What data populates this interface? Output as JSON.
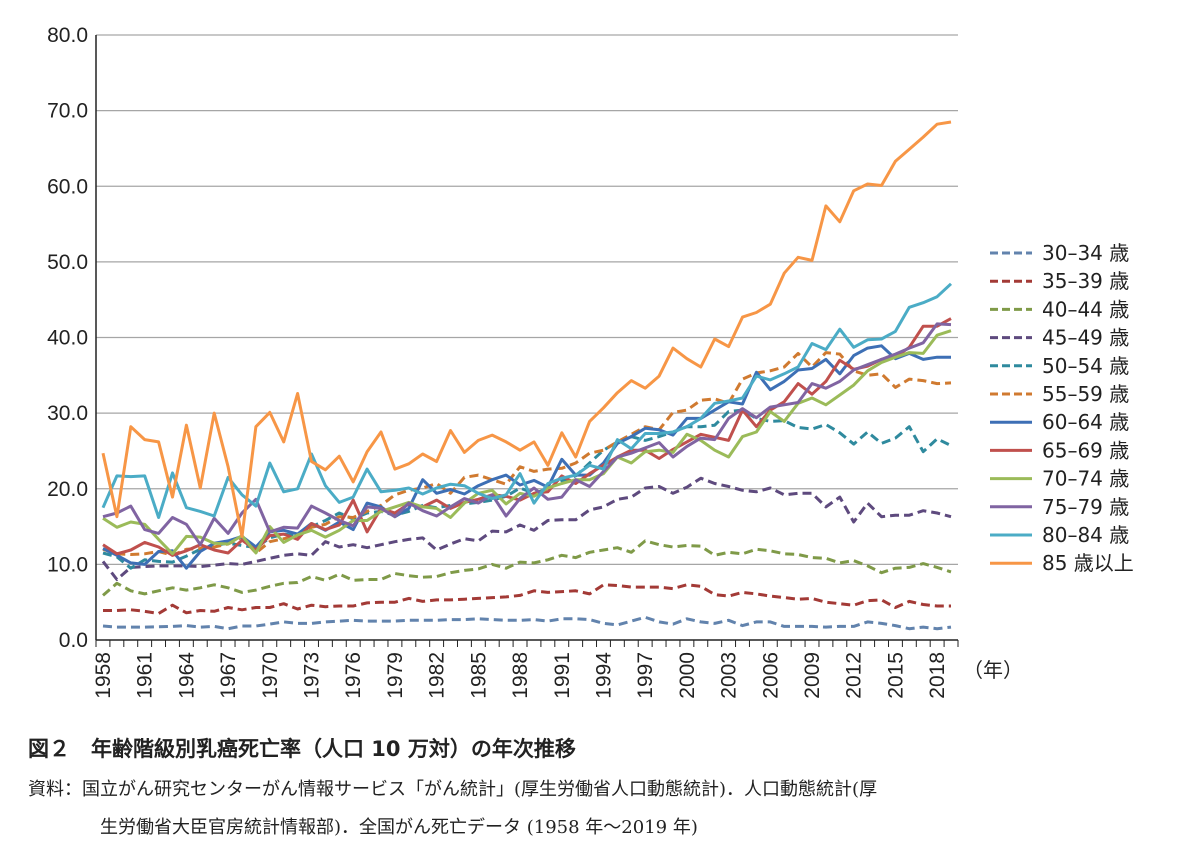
{
  "chart_data": {
    "type": "line",
    "title": "",
    "xlabel": "（年）",
    "ylabel": "",
    "ylim": [
      0,
      80
    ],
    "yticks": [
      "0.0",
      "10.0",
      "20.0",
      "30.0",
      "40.0",
      "50.0",
      "60.0",
      "70.0",
      "80.0"
    ],
    "xtick_labels": [
      "1958",
      "1961",
      "1964",
      "1967",
      "1970",
      "1973",
      "1976",
      "1979",
      "1982",
      "1985",
      "1988",
      "1991",
      "1994",
      "1997",
      "2000",
      "2003",
      "2006",
      "2009",
      "2012",
      "2015",
      "2018"
    ],
    "x_start": 1958,
    "x_end": 2019,
    "grid": "horizontal",
    "legend_placement": "right",
    "series": [
      {
        "name": "30–34 歳",
        "style": "dashed",
        "color": "#6283ad",
        "values": [
          1.85,
          1.7,
          1.7,
          1.7,
          1.75,
          1.8,
          1.9,
          1.7,
          1.8,
          1.5,
          1.85,
          1.85,
          2.1,
          2.4,
          2.2,
          2.2,
          2.4,
          2.5,
          2.6,
          2.5,
          2.5,
          2.5,
          2.6,
          2.6,
          2.6,
          2.7,
          2.7,
          2.8,
          2.7,
          2.6,
          2.6,
          2.7,
          2.5,
          2.8,
          2.8,
          2.7,
          2.2,
          2.0,
          2.5,
          3.0,
          2.4,
          2.1,
          2.8,
          2.4,
          2.2,
          2.6,
          1.9,
          2.4,
          2.4,
          1.8,
          1.8,
          1.8,
          1.7,
          1.8,
          1.8,
          2.4,
          2.2,
          1.9,
          1.5,
          1.7,
          1.5,
          1.7
        ]
      },
      {
        "name": "35–39 歳",
        "style": "dashed",
        "color": "#a33a36",
        "values": [
          3.9,
          3.9,
          4.0,
          3.8,
          3.5,
          4.6,
          3.6,
          3.9,
          3.8,
          4.3,
          4.0,
          4.3,
          4.3,
          4.8,
          4.1,
          4.6,
          4.4,
          4.5,
          4.5,
          4.9,
          5.0,
          5.0,
          5.5,
          5.1,
          5.3,
          5.3,
          5.4,
          5.5,
          5.6,
          5.7,
          5.9,
          6.5,
          6.3,
          6.4,
          6.5,
          6.1,
          7.3,
          7.2,
          7.0,
          7.0,
          7.0,
          6.8,
          7.3,
          7.1,
          6.0,
          5.8,
          6.3,
          6.1,
          5.8,
          5.6,
          5.4,
          5.5,
          5.0,
          4.8,
          4.6,
          5.2,
          5.3,
          4.3,
          5.1,
          4.7,
          4.5,
          4.5
        ]
      },
      {
        "name": "40–44 歳",
        "style": "dashed",
        "color": "#7f9a48",
        "values": [
          5.9,
          7.5,
          6.5,
          6.1,
          6.5,
          6.9,
          6.6,
          6.9,
          7.3,
          6.9,
          6.3,
          6.6,
          7.1,
          7.5,
          7.6,
          8.4,
          7.9,
          8.7,
          7.9,
          8.0,
          8.0,
          8.8,
          8.5,
          8.3,
          8.4,
          8.9,
          9.2,
          9.4,
          10.0,
          9.5,
          10.3,
          10.2,
          10.6,
          11.2,
          10.9,
          11.6,
          11.9,
          12.2,
          11.6,
          13.1,
          12.6,
          12.3,
          12.5,
          12.4,
          11.2,
          11.6,
          11.4,
          12.0,
          11.8,
          11.4,
          11.3,
          10.9,
          10.8,
          10.2,
          10.5,
          9.8,
          8.9,
          9.5,
          9.6,
          10.1,
          9.6,
          9.0
        ]
      },
      {
        "name": "45–49 歳",
        "style": "dashed",
        "color": "#5e4a7e",
        "values": [
          10.4,
          8.0,
          9.6,
          9.7,
          9.8,
          9.8,
          9.8,
          9.7,
          9.9,
          10.1,
          10.0,
          10.4,
          10.8,
          11.2,
          11.4,
          11.2,
          13.0,
          12.3,
          12.6,
          12.2,
          12.6,
          13.0,
          13.3,
          13.5,
          11.9,
          12.7,
          13.4,
          13.1,
          14.4,
          14.3,
          15.2,
          14.5,
          15.8,
          15.9,
          15.9,
          17.2,
          17.6,
          18.6,
          18.9,
          20.1,
          20.3,
          19.4,
          20.2,
          21.4,
          20.7,
          20.3,
          19.8,
          19.6,
          20.1,
          19.2,
          19.4,
          19.4,
          17.6,
          18.9,
          15.6,
          18.1,
          16.3,
          16.5,
          16.5,
          17.1,
          16.8,
          16.3
        ]
      },
      {
        "name": "50–54 歳",
        "style": "dashed",
        "color": "#2f8a9e",
        "values": [
          11.5,
          11.0,
          9.5,
          10.6,
          10.4,
          10.3,
          11.1,
          12.0,
          12.5,
          12.8,
          12.5,
          12.2,
          13.5,
          14.0,
          13.8,
          15.0,
          15.8,
          16.8,
          16.0,
          16.8,
          17.0,
          16.5,
          17.0,
          17.8,
          17.5,
          17.8,
          18.0,
          18.2,
          18.5,
          19.0,
          20.1,
          19.4,
          20.0,
          21.0,
          21.7,
          23.4,
          25.1,
          26.2,
          26.9,
          26.4,
          26.9,
          27.5,
          28.2,
          28.2,
          28.4,
          30.2,
          30.4,
          29.3,
          28.9,
          29.0,
          28.1,
          27.9,
          28.5,
          27.4,
          25.9,
          27.5,
          26.0,
          26.7,
          28.2,
          24.9,
          26.6,
          25.7
        ]
      },
      {
        "name": "55–59 歳",
        "style": "dashed",
        "color": "#d07a30",
        "values": [
          12.0,
          11.4,
          11.3,
          11.4,
          11.7,
          11.2,
          12.0,
          12.1,
          12.3,
          12.7,
          13.6,
          11.5,
          13.0,
          13.4,
          13.7,
          14.9,
          15.3,
          16.3,
          16.2,
          17.0,
          17.8,
          19.2,
          19.8,
          20.1,
          20.7,
          19.4,
          21.5,
          21.8,
          21.2,
          20.6,
          22.9,
          22.3,
          22.6,
          22.7,
          23.4,
          24.7,
          25.1,
          26.2,
          27.2,
          28.2,
          27.8,
          30.1,
          30.4,
          31.7,
          31.9,
          31.3,
          34.5,
          35.3,
          35.6,
          36.1,
          37.9,
          36.1,
          38.0,
          37.8,
          35.6,
          35.0,
          35.2,
          33.4,
          34.5,
          34.3,
          33.9,
          34.0
        ]
      },
      {
        "name": "60–64 歳",
        "style": "solid",
        "color": "#3d6fb5",
        "values": [
          12.1,
          11.2,
          10.2,
          10.0,
          11.7,
          11.8,
          9.5,
          11.7,
          12.8,
          13.1,
          13.7,
          12.3,
          14.3,
          14.5,
          14.0,
          15.4,
          14.5,
          15.6,
          14.6,
          18.1,
          17.6,
          16.3,
          17.4,
          21.2,
          19.4,
          19.9,
          19.3,
          20.4,
          21.2,
          21.8,
          20.5,
          21.1,
          20.2,
          23.9,
          21.8,
          21.8,
          23.4,
          26.0,
          26.9,
          28.0,
          27.8,
          27.1,
          29.3,
          29.3,
          30.4,
          31.5,
          31.2,
          35.4,
          33.1,
          34.2,
          35.7,
          35.9,
          37.1,
          35.2,
          37.6,
          38.6,
          38.9,
          37.2,
          37.9,
          37.1,
          37.4,
          37.4
        ]
      },
      {
        "name": "65–69 歳",
        "style": "solid",
        "color": "#c0504d",
        "values": [
          12.6,
          11.4,
          11.9,
          12.9,
          12.3,
          11.2,
          11.8,
          12.6,
          11.9,
          11.5,
          13.2,
          11.9,
          13.8,
          14.0,
          13.3,
          15.4,
          14.6,
          15.2,
          18.5,
          14.3,
          17.4,
          16.8,
          18.0,
          17.6,
          18.5,
          17.4,
          18.2,
          18.6,
          19.2,
          19.0,
          18.5,
          19.4,
          19.6,
          21.7,
          20.7,
          22.0,
          23.1,
          24.2,
          25.1,
          25.1,
          24.0,
          25.2,
          26.2,
          27.2,
          26.8,
          26.4,
          30.4,
          28.2,
          30.4,
          31.5,
          33.9,
          32.5,
          34.2,
          37.0,
          35.8,
          36.2,
          37.1,
          37.4,
          38.7,
          41.5,
          41.5,
          42.5
        ]
      },
      {
        "name": "70–74 歳",
        "style": "solid",
        "color": "#9bbb59",
        "values": [
          16.1,
          14.9,
          15.6,
          15.3,
          13.3,
          11.4,
          13.7,
          13.6,
          12.8,
          12.7,
          13.8,
          11.5,
          15.0,
          12.9,
          13.9,
          14.5,
          13.6,
          14.5,
          15.8,
          15.8,
          17.0,
          17.6,
          18.2,
          17.6,
          17.4,
          16.2,
          18.1,
          19.4,
          19.8,
          18.0,
          19.4,
          19.0,
          20.1,
          20.7,
          21.2,
          21.2,
          22.0,
          24.2,
          23.4,
          24.9,
          25.1,
          24.8,
          27.2,
          26.4,
          25.1,
          24.2,
          26.9,
          27.5,
          30.2,
          28.9,
          31.3,
          32.0,
          31.1,
          32.4,
          33.7,
          35.6,
          36.7,
          37.4,
          38.0,
          37.9,
          40.3,
          40.9
        ]
      },
      {
        "name": "75–79 歳",
        "style": "solid",
        "color": "#8064a2",
        "values": [
          16.3,
          16.8,
          17.7,
          14.6,
          14.1,
          16.2,
          15.3,
          12.6,
          16.1,
          14.1,
          16.8,
          18.6,
          14.3,
          14.9,
          14.8,
          17.7,
          16.8,
          15.8,
          15.1,
          17.6,
          17.4,
          16.3,
          18.1,
          17.1,
          16.4,
          17.6,
          18.7,
          18.1,
          19.2,
          16.4,
          18.7,
          20.1,
          18.6,
          18.9,
          21.2,
          20.3,
          22.3,
          24.2,
          24.7,
          25.4,
          26.1,
          24.2,
          25.6,
          26.7,
          26.5,
          29.3,
          30.6,
          29.4,
          30.8,
          31.1,
          31.4,
          33.9,
          33.3,
          34.2,
          35.7,
          36.4,
          37.1,
          37.8,
          38.6,
          39.3,
          41.8,
          41.7
        ]
      },
      {
        "name": "80–84 歳",
        "style": "solid",
        "color": "#4bacc6",
        "values": [
          17.5,
          21.7,
          21.6,
          21.7,
          16.2,
          22.1,
          17.5,
          17.0,
          16.4,
          21.5,
          19.2,
          17.7,
          23.4,
          19.6,
          20.0,
          24.6,
          20.4,
          18.2,
          18.9,
          22.6,
          19.6,
          19.8,
          20.1,
          19.3,
          20.1,
          20.6,
          20.4,
          19.4,
          18.7,
          19.2,
          22.0,
          18.1,
          20.7,
          21.4,
          21.8,
          23.1,
          22.6,
          26.5,
          25.3,
          27.3,
          27.3,
          27.5,
          28.2,
          29.3,
          31.3,
          31.6,
          32.0,
          34.9,
          34.4,
          35.2,
          36.1,
          39.2,
          38.4,
          41.1,
          38.7,
          39.7,
          39.8,
          40.8,
          44.0,
          44.6,
          45.4,
          47.1
        ]
      },
      {
        "name": "85 歳以上",
        "style": "solid",
        "color": "#f79646",
        "values": [
          24.7,
          16.3,
          28.2,
          26.5,
          26.2,
          18.9,
          28.4,
          20.1,
          30.0,
          22.9,
          13.7,
          28.2,
          30.1,
          26.2,
          32.6,
          23.6,
          22.5,
          24.3,
          20.9,
          24.9,
          27.5,
          22.6,
          23.3,
          24.6,
          23.6,
          27.7,
          24.8,
          26.4,
          27.1,
          26.2,
          25.1,
          26.2,
          23.1,
          27.4,
          24.2,
          28.9,
          30.7,
          32.7,
          34.3,
          33.3,
          34.9,
          38.6,
          37.2,
          36.1,
          39.8,
          38.8,
          42.7,
          43.3,
          44.4,
          48.5,
          50.6,
          50.2,
          57.4,
          55.3,
          59.4,
          60.3,
          60.1,
          63.3,
          64.9,
          66.5,
          68.2,
          68.5
        ]
      }
    ]
  },
  "caption": {
    "figure_title": "図２　年齢階級別乳癌死亡率（人口 10 万対）の年次推移",
    "source_line1": "資料：国立がん研究センターがん情報サービス「がん統計」(厚生労働省人口動態統計)．人口動態統計(厚",
    "source_line2": "生労働省大臣官房統計情報部)．全国がん死亡データ (1958 年～2019 年)"
  }
}
